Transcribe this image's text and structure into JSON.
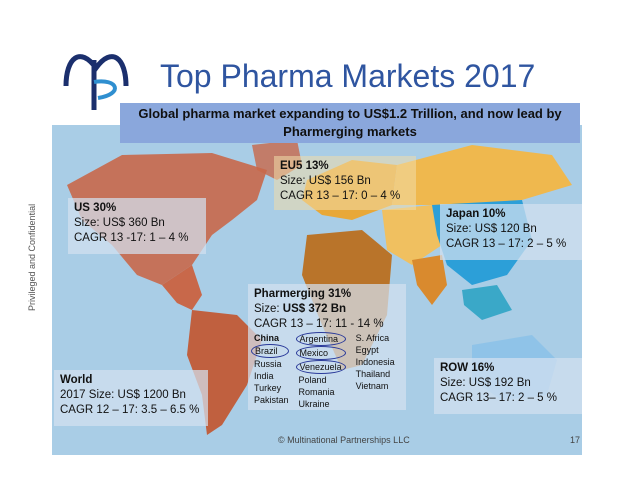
{
  "slide": {
    "title": "Top Pharma Markets 2017",
    "subtitle": "Global pharma market expanding to US$1.2 Trillion, and now lead by Pharmerging markets",
    "side_label": "Privileged and Confidential"
  },
  "regions": {
    "us": {
      "head": "US 30%",
      "size": "Size: US$ 360 Bn",
      "cagr": "CAGR 13 -17: 1 – 4 %"
    },
    "eu5": {
      "head": "EU5 13%",
      "size": "Size: US$ 156 Bn",
      "cagr": "CAGR 13 – 17: 0 – 4 %"
    },
    "japan": {
      "head": "Japan 10%",
      "size": "Size: US$ 120 Bn",
      "cagr": "CAGR 13 – 17: 2 – 5 %"
    },
    "pharmerging": {
      "head": "Pharmerging 31%",
      "size_prefix": "Size: ",
      "size_value": "US$ 372 Bn",
      "cagr": "CAGR 13 – 17: 11 - 14 %",
      "countries_col1": [
        "China",
        "Brazil",
        "Russia",
        "India",
        "Turkey",
        "Pakistan"
      ],
      "countries_col2": [
        "Argentina",
        "Mexico",
        "Venezuela",
        "Poland",
        "Romania",
        "Ukraine"
      ],
      "countries_col3": [
        "S. Africa",
        "Egypt",
        "Indonesia",
        "Thailand",
        "Vietnam"
      ]
    },
    "row": {
      "head": "ROW 16%",
      "size": "Size: US$ 192 Bn",
      "cagr": "CAGR 13– 17: 2 – 5 %"
    },
    "world": {
      "head": "World",
      "size": "2017 Size: US$ 1200 Bn",
      "cagr": "CAGR 12 – 17: 3.5 – 6.5 %"
    }
  },
  "footer": {
    "copyright": "© Multinational Partnerships LLC",
    "page": "17"
  },
  "colors": {
    "title": "#2f55a0",
    "subtitle_bg": "#8aa7dc",
    "ocean": "#a9cde6",
    "americas": "#c8684a",
    "europe": "#e8a838",
    "asia": "#2c9fd8",
    "africa": "#b9742a"
  }
}
